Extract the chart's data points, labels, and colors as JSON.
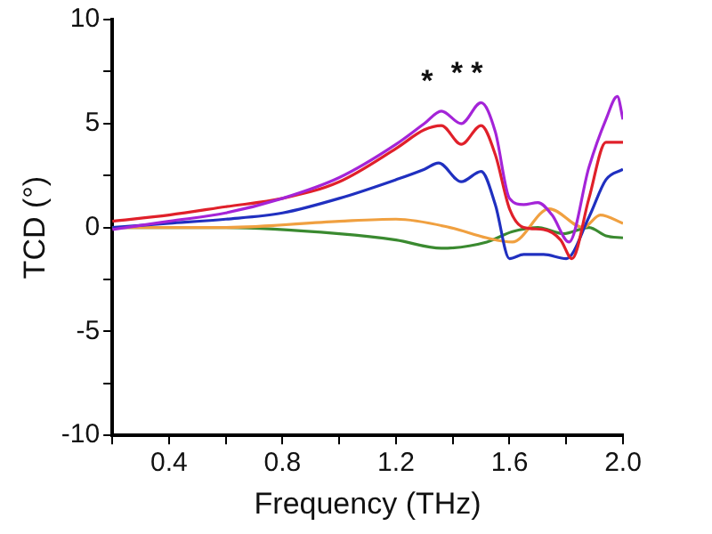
{
  "chart_data": {
    "type": "line",
    "xlabel": "Frequency (THz)",
    "ylabel": "TCD (°)",
    "xlim": [
      0.2,
      2.0
    ],
    "xticks": [
      {
        "value": 0.2,
        "label": null
      },
      0.4,
      {
        "value": 0.6,
        "label": null
      },
      0.8,
      {
        "value": 1.0,
        "label": null
      },
      1.2,
      {
        "value": 1.4,
        "label": null
      },
      1.6,
      {
        "value": 1.8,
        "label": null
      },
      {
        "value": 2.0,
        "label": "2.0"
      }
    ],
    "ylim": [
      -10,
      10
    ],
    "yticks": [
      -10,
      {
        "value": -7.5,
        "label": null
      },
      -5,
      {
        "value": -2.5,
        "label": null
      },
      0,
      {
        "value": 2.5,
        "label": null
      },
      5,
      {
        "value": 7.5,
        "label": null
      },
      10
    ],
    "grid": false,
    "legend": false,
    "marker": "none",
    "line_style": "solid",
    "series": [
      {
        "color": "#a424d8",
        "x": [
          0.2,
          0.4,
          0.6,
          0.8,
          1.0,
          1.2,
          1.3,
          1.36,
          1.43,
          1.5,
          1.55,
          1.6,
          1.65,
          1.7,
          1.75,
          1.81,
          1.88,
          1.94,
          1.98,
          2.0
        ],
        "values": [
          -0.1,
          0.3,
          0.7,
          1.4,
          2.4,
          4.0,
          5.0,
          5.6,
          5.0,
          6.0,
          4.6,
          1.4,
          1.1,
          1.2,
          0.6,
          -0.7,
          2.9,
          5.2,
          6.3,
          5.2
        ]
      },
      {
        "color": "#e0202a",
        "x": [
          0.2,
          0.4,
          0.6,
          0.8,
          1.0,
          1.2,
          1.3,
          1.36,
          1.43,
          1.5,
          1.55,
          1.6,
          1.65,
          1.72,
          1.78,
          1.82,
          1.88,
          1.94,
          2.0
        ],
        "values": [
          0.3,
          0.6,
          1.0,
          1.4,
          2.2,
          3.8,
          4.7,
          4.9,
          4.0,
          4.9,
          3.5,
          0.9,
          0.0,
          -0.1,
          -0.6,
          -1.5,
          1.4,
          4.1,
          4.1
        ]
      },
      {
        "color": "#2030c0",
        "x": [
          0.2,
          0.4,
          0.6,
          0.8,
          1.0,
          1.2,
          1.3,
          1.35,
          1.43,
          1.5,
          1.55,
          1.6,
          1.65,
          1.72,
          1.8,
          1.88,
          1.94,
          2.0
        ],
        "values": [
          0,
          0.2,
          0.4,
          0.7,
          1.4,
          2.3,
          2.8,
          3.1,
          2.2,
          2.7,
          1.1,
          -1.5,
          -1.3,
          -1.3,
          -1.5,
          0.5,
          2.3,
          2.8
        ]
      },
      {
        "color": "#f0a040",
        "x": [
          0.2,
          0.6,
          1.0,
          1.2,
          1.39,
          1.52,
          1.61,
          1.74,
          1.86,
          1.92,
          2.0
        ],
        "values": [
          0,
          0,
          0.3,
          0.4,
          0,
          -0.5,
          -0.7,
          0.9,
          0,
          0.6,
          0.2
        ]
      },
      {
        "color": "#3a8a30",
        "x": [
          0.2,
          0.6,
          1.0,
          1.2,
          1.36,
          1.52,
          1.61,
          1.7,
          1.79,
          1.88,
          1.94,
          2.0
        ],
        "values": [
          0,
          0,
          -0.3,
          -0.6,
          -1.0,
          -0.7,
          -0.2,
          0,
          -0.3,
          0,
          -0.4,
          -0.5
        ]
      }
    ],
    "annotations": [
      {
        "text": "*",
        "x": 1.36,
        "y": 5.6
      },
      {
        "text": "* *",
        "x": 1.5,
        "y": 6.0
      }
    ]
  }
}
